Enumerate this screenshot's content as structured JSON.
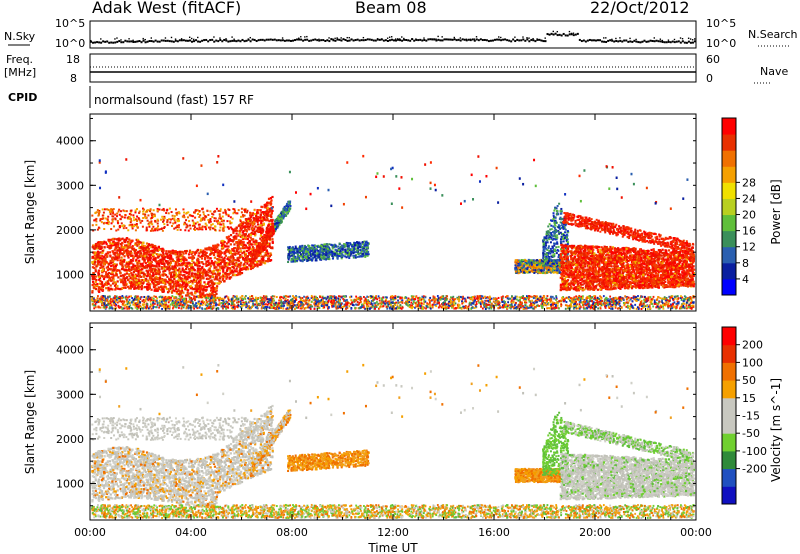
{
  "header": {
    "radar": "Adak West (fitACF)",
    "beam": "Beam 08",
    "date": "22/Oct/2012"
  },
  "noise_panel": {
    "left_label": "N.Sky",
    "right_label": "N.Search",
    "left_ticks": [
      "10^5",
      "10^0"
    ],
    "right_ticks": [
      "10^5",
      "10^0"
    ]
  },
  "freq_panel": {
    "left_label": "Freq.",
    "left_unit": "[MHz]",
    "left_ticks": [
      "18",
      "8"
    ],
    "right_label": "Nave",
    "right_ticks": [
      "60",
      "0"
    ]
  },
  "cpid_panel": {
    "label": "CPID",
    "value": "normalsound (fast) 157 RF"
  },
  "chart_data": [
    {
      "type": "heatmap",
      "name_of_quantity": "Power",
      "ylabel": "Slant Range [km]",
      "xlabel": "",
      "y_ticks": [
        "1000",
        "2000",
        "3000",
        "4000"
      ],
      "ylim": [
        180,
        4600
      ],
      "colorbar_label": "Power [dB]",
      "colorbar_ticks": [
        "4",
        "8",
        "12",
        "16",
        "20",
        "24",
        "28"
      ],
      "colorbar_colors": [
        "#0000ff",
        "#0a1fa0",
        "#2a5fb0",
        "#3a8f5a",
        "#5fbf3a",
        "#b8d020",
        "#f0e000",
        "#f5a000",
        "#f07000",
        "#e83000",
        "#ff0000"
      ]
    },
    {
      "type": "heatmap",
      "name_of_quantity": "Velocity",
      "ylabel": "Slant Range [km]",
      "xlabel": "Time UT",
      "y_ticks": [
        "1000",
        "2000",
        "3000",
        "4000"
      ],
      "ylim": [
        180,
        4600
      ],
      "x_ticks": [
        "00:00",
        "04:00",
        "08:00",
        "12:00",
        "16:00",
        "20:00",
        "00:00"
      ],
      "colorbar_label": "Velocity [m s^-1]",
      "colorbar_ticks": [
        "200",
        "100",
        "50",
        "15",
        "-15",
        "-50",
        "-100",
        "-200"
      ],
      "colorbar_colors": [
        "#1010c0",
        "#2050c0",
        "#2f8a3a",
        "#70d030",
        "#c8c8c0",
        "#c8c8c0",
        "#f5a000",
        "#f07000",
        "#e83000",
        "#ff0000"
      ]
    }
  ]
}
